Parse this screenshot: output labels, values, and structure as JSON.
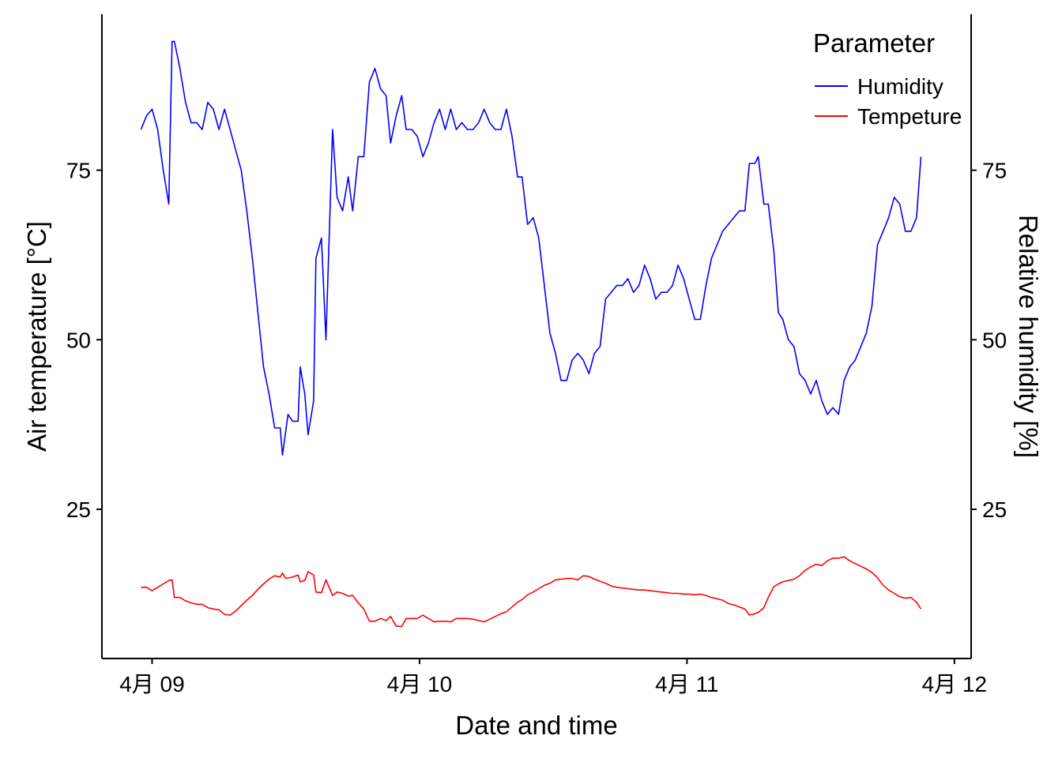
{
  "chart_data": {
    "type": "line",
    "xlabel": "Date and time",
    "ylabel_left": "Air temperature [°C]",
    "ylabel_right": "Relative humidity [%]",
    "x_ticks": [
      {
        "value": 0,
        "label": "4月 09"
      },
      {
        "value": 24,
        "label": "4月 10"
      },
      {
        "value": 48,
        "label": "4月 11"
      },
      {
        "value": 72,
        "label": "4月 12"
      }
    ],
    "y_ticks_left": [
      25,
      50,
      75
    ],
    "y_ticks_right": [
      25,
      50,
      75
    ],
    "xlim": [
      -4.5,
      73.5
    ],
    "ylim": [
      3,
      98
    ],
    "grid": false,
    "legend": {
      "title": "Parameter",
      "position": "top-right"
    },
    "series": [
      {
        "name": "Humidity",
        "color": "#0000ff",
        "points": [
          [
            -1,
            81
          ],
          [
            -0.5,
            83
          ],
          [
            0,
            84
          ],
          [
            0.5,
            81
          ],
          [
            1,
            75
          ],
          [
            1.5,
            70
          ],
          [
            1.8,
            94
          ],
          [
            2,
            94
          ],
          [
            2.5,
            90
          ],
          [
            3,
            85
          ],
          [
            3.5,
            82
          ],
          [
            4,
            82
          ],
          [
            4.5,
            81
          ],
          [
            5,
            85
          ],
          [
            5.5,
            84
          ],
          [
            6,
            81
          ],
          [
            6.5,
            84
          ],
          [
            7,
            81
          ],
          [
            7.5,
            78
          ],
          [
            8,
            75
          ],
          [
            8.5,
            69
          ],
          [
            9,
            62
          ],
          [
            9.5,
            54
          ],
          [
            10,
            46
          ],
          [
            10.5,
            42
          ],
          [
            11,
            37
          ],
          [
            11.5,
            37
          ],
          [
            11.7,
            33
          ],
          [
            12.2,
            39
          ],
          [
            12.6,
            38
          ],
          [
            13.1,
            38
          ],
          [
            13.3,
            46
          ],
          [
            13.7,
            42
          ],
          [
            14,
            36
          ],
          [
            14.5,
            41
          ],
          [
            14.7,
            62
          ],
          [
            15.2,
            65
          ],
          [
            15.6,
            50
          ],
          [
            16.2,
            81
          ],
          [
            16.6,
            71
          ],
          [
            17.1,
            69
          ],
          [
            17.6,
            74
          ],
          [
            18,
            69
          ],
          [
            18.5,
            77
          ],
          [
            19,
            77
          ],
          [
            19.5,
            88
          ],
          [
            20,
            90
          ],
          [
            20.5,
            87
          ],
          [
            21,
            86
          ],
          [
            21.4,
            79
          ],
          [
            21.9,
            83
          ],
          [
            22.4,
            86
          ],
          [
            22.8,
            81
          ],
          [
            23.3,
            81
          ],
          [
            23.8,
            80
          ],
          [
            24.3,
            77
          ],
          [
            24.8,
            79
          ],
          [
            25.3,
            82
          ],
          [
            25.8,
            84
          ],
          [
            26.3,
            81
          ],
          [
            26.8,
            84
          ],
          [
            27.3,
            81
          ],
          [
            27.8,
            82
          ],
          [
            28.3,
            81
          ],
          [
            28.8,
            81
          ],
          [
            29.3,
            82
          ],
          [
            29.8,
            84
          ],
          [
            30.3,
            82
          ],
          [
            30.8,
            81
          ],
          [
            31.3,
            81
          ],
          [
            31.8,
            84
          ],
          [
            32.3,
            80
          ],
          [
            32.8,
            74
          ],
          [
            33.2,
            74
          ],
          [
            33.7,
            67
          ],
          [
            34.2,
            68
          ],
          [
            34.7,
            65
          ],
          [
            35.2,
            58
          ],
          [
            35.7,
            51
          ],
          [
            36.2,
            48
          ],
          [
            36.7,
            44
          ],
          [
            37.2,
            44
          ],
          [
            37.7,
            47
          ],
          [
            38.2,
            48
          ],
          [
            38.7,
            47
          ],
          [
            39.2,
            45
          ],
          [
            39.7,
            48
          ],
          [
            40.2,
            49
          ],
          [
            40.7,
            56
          ],
          [
            41.2,
            57
          ],
          [
            41.7,
            58
          ],
          [
            42.2,
            58
          ],
          [
            42.7,
            59
          ],
          [
            43.2,
            57
          ],
          [
            43.7,
            58
          ],
          [
            44.2,
            61
          ],
          [
            44.7,
            59
          ],
          [
            45.2,
            56
          ],
          [
            45.7,
            57
          ],
          [
            46.2,
            57
          ],
          [
            46.7,
            58
          ],
          [
            47.2,
            61
          ],
          [
            47.7,
            59
          ],
          [
            48.2,
            56
          ],
          [
            48.7,
            53
          ],
          [
            49.2,
            53
          ],
          [
            49.7,
            58
          ],
          [
            50.2,
            62
          ],
          [
            50.7,
            64
          ],
          [
            51.2,
            66
          ],
          [
            51.7,
            67
          ],
          [
            52.2,
            68
          ],
          [
            52.7,
            69
          ],
          [
            53.2,
            69
          ],
          [
            53.6,
            76
          ],
          [
            54.1,
            76
          ],
          [
            54.4,
            77
          ],
          [
            54.9,
            70
          ],
          [
            55.3,
            70
          ],
          [
            55.8,
            63
          ],
          [
            56.2,
            54
          ],
          [
            56.6,
            53
          ],
          [
            57.1,
            50
          ],
          [
            57.6,
            49
          ],
          [
            58.1,
            45
          ],
          [
            58.6,
            44
          ],
          [
            59.1,
            42
          ],
          [
            59.6,
            44
          ],
          [
            60.1,
            41
          ],
          [
            60.6,
            39
          ],
          [
            61.1,
            40
          ],
          [
            61.6,
            39
          ],
          [
            62.1,
            44
          ],
          [
            62.6,
            46
          ],
          [
            63.1,
            47
          ],
          [
            63.6,
            49
          ],
          [
            64.1,
            51
          ],
          [
            64.6,
            55
          ],
          [
            65.1,
            64
          ],
          [
            65.6,
            66
          ],
          [
            66.1,
            68
          ],
          [
            66.6,
            71
          ],
          [
            67.1,
            70
          ],
          [
            67.6,
            66
          ],
          [
            68.1,
            66
          ],
          [
            68.6,
            68
          ],
          [
            69,
            77
          ]
        ]
      },
      {
        "name": "Tempeture",
        "color": "#ff0000",
        "points": [
          [
            -1,
            13.5
          ],
          [
            -0.5,
            13.5
          ],
          [
            0,
            13
          ],
          [
            0.5,
            13.5
          ],
          [
            1,
            14
          ],
          [
            1.5,
            14.5
          ],
          [
            1.8,
            14.6
          ],
          [
            2,
            12
          ],
          [
            2.5,
            12
          ],
          [
            3,
            11.5
          ],
          [
            3.5,
            11.2
          ],
          [
            4,
            11
          ],
          [
            4.5,
            11
          ],
          [
            5,
            10.5
          ],
          [
            5.5,
            10.3
          ],
          [
            6,
            10.2
          ],
          [
            6.5,
            9.5
          ],
          [
            7,
            9.4
          ],
          [
            7.5,
            10
          ],
          [
            8,
            10.8
          ],
          [
            8.5,
            11.6
          ],
          [
            9,
            12.3
          ],
          [
            9.5,
            13.2
          ],
          [
            10,
            14
          ],
          [
            10.5,
            14.7
          ],
          [
            11,
            15.2
          ],
          [
            11.5,
            15
          ],
          [
            11.7,
            15.6
          ],
          [
            12,
            14.8
          ],
          [
            12.6,
            15
          ],
          [
            13.1,
            15.3
          ],
          [
            13.3,
            14.3
          ],
          [
            13.7,
            14.5
          ],
          [
            14,
            15.8
          ],
          [
            14.5,
            15.3
          ],
          [
            14.7,
            12.8
          ],
          [
            15.2,
            12.7
          ],
          [
            15.6,
            14.6
          ],
          [
            16.2,
            12.3
          ],
          [
            16.6,
            12.8
          ],
          [
            17.1,
            12.6
          ],
          [
            17.6,
            12.2
          ],
          [
            18,
            12.3
          ],
          [
            18.5,
            11.2
          ],
          [
            19,
            10.3
          ],
          [
            19.5,
            8.5
          ],
          [
            20,
            8.5
          ],
          [
            20.5,
            8.9
          ],
          [
            21,
            8.6
          ],
          [
            21.4,
            9.2
          ],
          [
            21.9,
            7.8
          ],
          [
            22.4,
            7.7
          ],
          [
            22.8,
            8.9
          ],
          [
            23.3,
            8.9
          ],
          [
            23.8,
            8.9
          ],
          [
            24.3,
            9.4
          ],
          [
            24.8,
            8.9
          ],
          [
            25.3,
            8.4
          ],
          [
            25.8,
            8.5
          ],
          [
            26.3,
            8.5
          ],
          [
            26.8,
            8.4
          ],
          [
            27.3,
            8.9
          ],
          [
            27.8,
            8.9
          ],
          [
            28.3,
            8.9
          ],
          [
            28.8,
            8.8
          ],
          [
            29.3,
            8.6
          ],
          [
            29.8,
            8.4
          ],
          [
            30.3,
            8.8
          ],
          [
            30.8,
            9.2
          ],
          [
            31.3,
            9.6
          ],
          [
            31.8,
            9.9
          ],
          [
            32.3,
            10.6
          ],
          [
            32.8,
            11.3
          ],
          [
            33.2,
            11.7
          ],
          [
            33.7,
            12.4
          ],
          [
            34.2,
            12.8
          ],
          [
            34.7,
            13.3
          ],
          [
            35.2,
            13.8
          ],
          [
            35.7,
            14.1
          ],
          [
            36.2,
            14.6
          ],
          [
            36.7,
            14.7
          ],
          [
            37.2,
            14.8
          ],
          [
            37.7,
            14.8
          ],
          [
            38.2,
            14.6
          ],
          [
            38.7,
            15.2
          ],
          [
            39.2,
            15.1
          ],
          [
            39.7,
            14.7
          ],
          [
            40.2,
            14.4
          ],
          [
            40.7,
            14.1
          ],
          [
            41.2,
            13.7
          ],
          [
            41.7,
            13.5
          ],
          [
            42.2,
            13.4
          ],
          [
            42.7,
            13.3
          ],
          [
            43.2,
            13.2
          ],
          [
            43.7,
            13.1
          ],
          [
            44.2,
            13.1
          ],
          [
            44.7,
            13
          ],
          [
            45.2,
            12.9
          ],
          [
            45.7,
            12.8
          ],
          [
            46.2,
            12.7
          ],
          [
            46.7,
            12.6
          ],
          [
            47.2,
            12.6
          ],
          [
            47.7,
            12.5
          ],
          [
            48.2,
            12.5
          ],
          [
            48.7,
            12.4
          ],
          [
            49.2,
            12.5
          ],
          [
            49.7,
            12.3
          ],
          [
            50.2,
            12
          ],
          [
            50.7,
            11.8
          ],
          [
            51.2,
            11.6
          ],
          [
            51.7,
            11.1
          ],
          [
            52.2,
            10.9
          ],
          [
            52.7,
            10.6
          ],
          [
            53.2,
            10.3
          ],
          [
            53.6,
            9.4
          ],
          [
            54.1,
            9.6
          ],
          [
            54.4,
            9.8
          ],
          [
            54.9,
            10.5
          ],
          [
            55.3,
            12
          ],
          [
            55.8,
            13.6
          ],
          [
            56.2,
            14
          ],
          [
            56.6,
            14.3
          ],
          [
            57.1,
            14.5
          ],
          [
            57.6,
            14.7
          ],
          [
            58.1,
            15.2
          ],
          [
            58.6,
            16
          ],
          [
            59.1,
            16.5
          ],
          [
            59.6,
            16.9
          ],
          [
            60.1,
            16.7
          ],
          [
            60.6,
            17.4
          ],
          [
            61.1,
            17.8
          ],
          [
            61.6,
            17.8
          ],
          [
            62.1,
            18
          ],
          [
            62.6,
            17.4
          ],
          [
            63.1,
            17
          ],
          [
            63.6,
            16.6
          ],
          [
            64.1,
            16.2
          ],
          [
            64.6,
            15.7
          ],
          [
            65.1,
            14.9
          ],
          [
            65.6,
            13.8
          ],
          [
            66.1,
            13.1
          ],
          [
            66.6,
            12.6
          ],
          [
            67.1,
            12.1
          ],
          [
            67.6,
            11.9
          ],
          [
            68.1,
            12
          ],
          [
            68.6,
            11.3
          ],
          [
            69,
            10.3
          ]
        ]
      }
    ]
  }
}
